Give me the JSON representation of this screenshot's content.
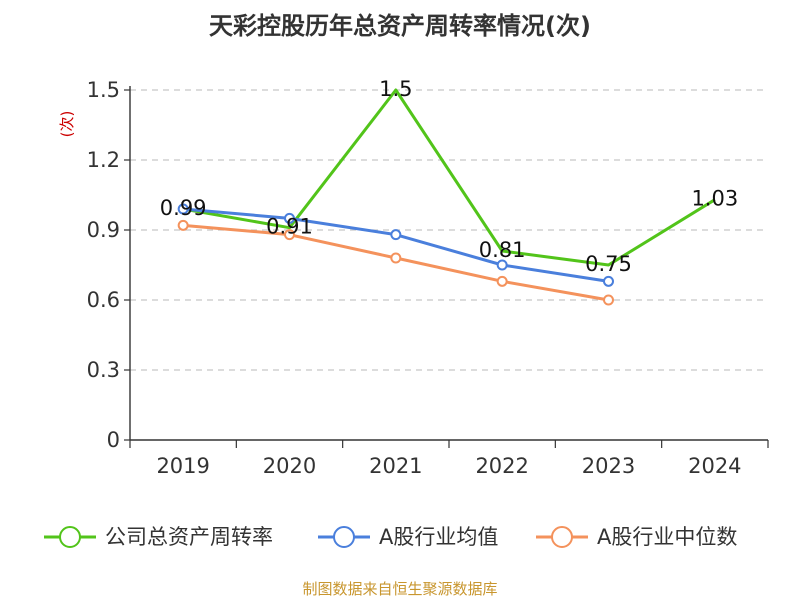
{
  "chart_data": {
    "type": "line",
    "title": "天彩控股历年总资产周转率情况(次)",
    "ylabel": "(次)",
    "categories": [
      "2019",
      "2020",
      "2021",
      "2022",
      "2023",
      "2024"
    ],
    "y_ticks": [
      "0",
      "0.3",
      "0.6",
      "0.9",
      "1.2",
      "1.5"
    ],
    "ylim": [
      0,
      1.5
    ],
    "grid": true,
    "legend_position": "bottom",
    "series": [
      {
        "name": "公司总资产周转率",
        "color": "#52c41a",
        "values": [
          0.99,
          0.91,
          1.5,
          0.81,
          0.75,
          1.03
        ],
        "labels": [
          "0.99",
          "0.91",
          "1.5",
          "0.81",
          "0.75",
          "1.03"
        ]
      },
      {
        "name": "A股行业均值",
        "color": "#4a7fdc",
        "values": [
          0.99,
          0.95,
          0.88,
          0.75,
          0.68,
          null
        ]
      },
      {
        "name": "A股行业中位数",
        "color": "#f4925c",
        "values": [
          0.92,
          0.88,
          0.78,
          0.68,
          0.6,
          null
        ]
      }
    ],
    "source": "制图数据来自恒生聚源数据库"
  }
}
